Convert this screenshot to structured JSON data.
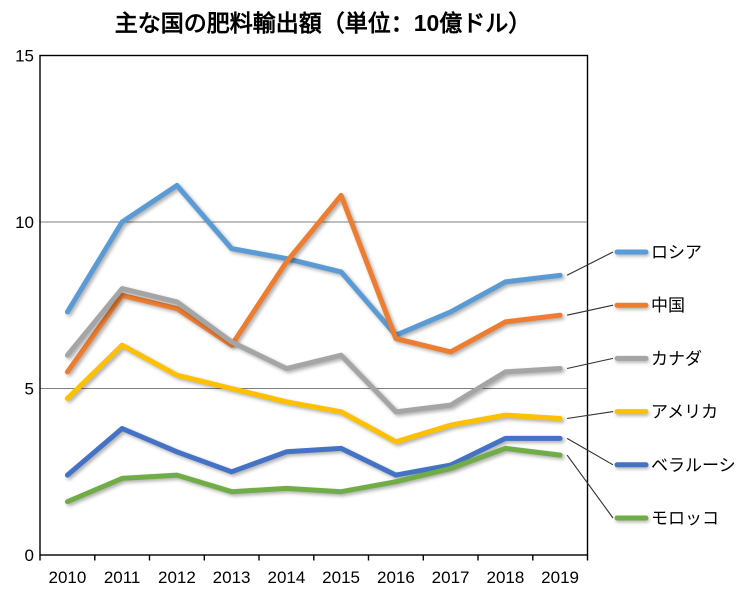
{
  "title": "主な国の肥料輸出額（単位：10億ドル）",
  "chart_data": {
    "type": "line",
    "title": "主な国の肥料輸出額（単位：10億ドル）",
    "xlabel": "",
    "ylabel": "",
    "x": [
      2010,
      2011,
      2012,
      2013,
      2014,
      2015,
      2016,
      2017,
      2018,
      2019
    ],
    "ylim": [
      0,
      15
    ],
    "yticks": [
      0,
      5,
      10,
      15
    ],
    "grid": true,
    "legend_position": "right",
    "series": [
      {
        "name": "ロシア",
        "color": "#5B9BD5",
        "values": [
          7.3,
          10.0,
          11.1,
          9.2,
          8.9,
          8.5,
          6.6,
          7.3,
          8.2,
          8.4
        ]
      },
      {
        "name": "中国",
        "color": "#ED7D31",
        "values": [
          5.5,
          7.8,
          7.4,
          6.3,
          8.8,
          10.8,
          6.5,
          6.1,
          7.0,
          7.2
        ]
      },
      {
        "name": "カナダ",
        "color": "#A5A5A5",
        "values": [
          6.0,
          8.0,
          7.6,
          6.4,
          5.6,
          6.0,
          4.3,
          4.5,
          5.5,
          5.6
        ]
      },
      {
        "name": "アメリカ",
        "color": "#FFC000",
        "values": [
          4.7,
          6.3,
          5.4,
          5.0,
          4.6,
          4.3,
          3.4,
          3.9,
          4.2,
          4.1
        ]
      },
      {
        "name": "ベラルーシ",
        "color": "#4472C4",
        "values": [
          2.4,
          3.8,
          3.1,
          2.5,
          3.1,
          3.2,
          2.4,
          2.7,
          3.5,
          3.5
        ]
      },
      {
        "name": "モロッコ",
        "color": "#70AD47",
        "values": [
          1.6,
          2.3,
          2.4,
          1.9,
          2.0,
          1.9,
          2.2,
          2.6,
          3.2,
          3.0
        ]
      }
    ]
  }
}
